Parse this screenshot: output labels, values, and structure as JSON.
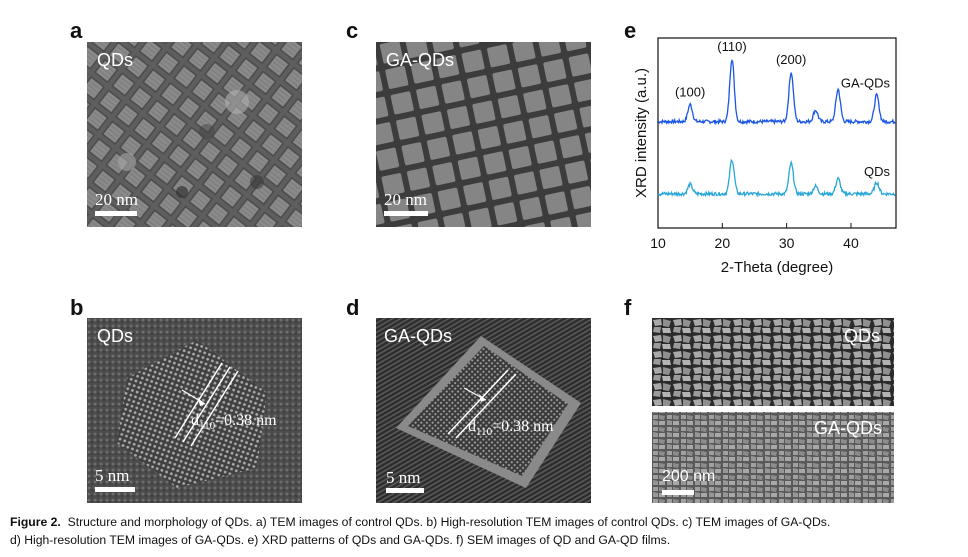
{
  "panels": {
    "a": {
      "letter": "a",
      "label": "QDs",
      "scale": "20 nm"
    },
    "b": {
      "letter": "b",
      "label": "QDs",
      "scale": "5 nm",
      "d_main": "d",
      "d_sub": "110",
      "d_value": "=0.38 nm"
    },
    "c": {
      "letter": "c",
      "label": "GA-QDs",
      "scale": "20 nm"
    },
    "d": {
      "letter": "d",
      "label": "GA-QDs",
      "scale": "5 nm",
      "d_main": "d",
      "d_sub": "110",
      "d_value": "=0.38 nm"
    },
    "e": {
      "letter": "e"
    },
    "f": {
      "letter": "f",
      "label_top": "QDs",
      "label_bottom": "GA-QDs",
      "scale": "200 nm"
    }
  },
  "chart_data": {
    "type": "line",
    "xlabel": "2-Theta (degree)",
    "ylabel": "XRD intensity (a.u.)",
    "xlim": [
      10,
      47
    ],
    "ylim": [
      0,
      10
    ],
    "xticks": [
      10,
      20,
      30,
      40
    ],
    "y_tick_labels": false,
    "grid": false,
    "legend": "none",
    "peaks": [
      {
        "x": 15.0,
        "label": "(100)",
        "h_top": 0.9,
        "h_bot": 0.5
      },
      {
        "x": 21.5,
        "label": "(110)",
        "h_top": 3.3,
        "h_bot": 1.8
      },
      {
        "x": 30.7,
        "label": "(200)",
        "h_top": 2.6,
        "h_bot": 1.6
      },
      {
        "x": 34.5,
        "label": "",
        "h_top": 0.6,
        "h_bot": 0.4
      },
      {
        "x": 38.0,
        "label": "",
        "h_top": 1.7,
        "h_bot": 0.8
      },
      {
        "x": 44.0,
        "label": "",
        "h_top": 1.4,
        "h_bot": 0.6
      }
    ],
    "series": [
      {
        "name": "GA-QDs",
        "baseline": 5.6,
        "color": "#1a55e6"
      },
      {
        "name": "QDs",
        "baseline": 1.8,
        "color": "#29a7d8"
      }
    ]
  },
  "caption": {
    "fig_label": "Figure 2.",
    "line1": "Structure and morphology of QDs. a) TEM images of control QDs. b) High-resolution TEM images of control QDs. c) TEM images of GA-QDs.",
    "line2": "d) High-resolution TEM images of GA-QDs. e) XRD patterns of QDs and GA-QDs. f) SEM images of QD and GA-QD films."
  }
}
